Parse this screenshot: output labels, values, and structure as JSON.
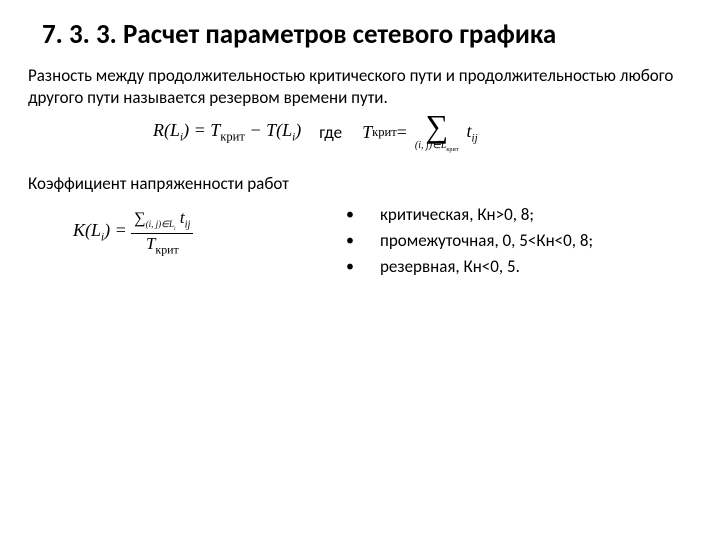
{
  "title": "7. 3. 3. Расчет параметров сетевого графика",
  "paragraph": "Разность между продолжительностью критического пути и продолжительностью любого другого пути называется резервом времени пути.",
  "formula_r_lhs": "R(L",
  "formula_r_sub": "i",
  "formula_r_rhs_a": ") = T",
  "formula_r_krit": "крит",
  "formula_r_rhs_b": " − T(L",
  "formula_r_rhs_c": ")",
  "gde": "где",
  "tk_lhs_a": "T",
  "tk_krit": "крит",
  "tk_eq": " = ",
  "sum_sub": "(i, j)∈L",
  "sum_sub2": "крит",
  "t_ij_a": "t",
  "t_ij_sub": "ij",
  "subheading": "Коэффициент напряженности работ",
  "k_lhs_a": "K(L",
  "k_lhs_sub": "i",
  "k_lhs_b": ") = ",
  "k_num_sigma": "∑",
  "k_num_sub_a": "(i, j)∈L",
  "k_num_sub_i": "i",
  "k_num_t": " t",
  "k_num_tij": "ij",
  "k_den_a": "T",
  "k_den_krit": "крит",
  "bullets": [
    "критическая, Кн>0, 8;",
    "промежуточная, 0, 5<Кн<0, 8;",
    "резервная, Кн<0, 5."
  ],
  "dot": "•"
}
